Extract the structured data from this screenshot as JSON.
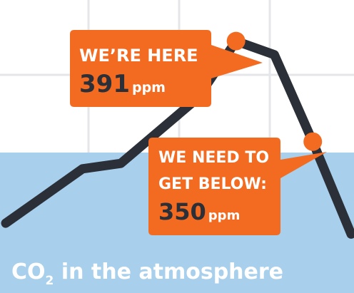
{
  "colors": {
    "background": "#ffffff",
    "band": "#a8d0ec",
    "grid": "#e4e6ea",
    "line": "#2b2f38",
    "accent": "#f26b21",
    "callout_text": "#ffffff",
    "callout_number": "#2b2f38"
  },
  "callouts": {
    "current": {
      "heading": "WE’RE HERE",
      "value": "391",
      "unit": "ppm"
    },
    "target": {
      "heading_line1": "WE NEED TO",
      "heading_line2": "GET BELOW:",
      "value": "350",
      "unit": "ppm"
    }
  },
  "caption": {
    "prefix": "CO",
    "subscript": "2",
    "suffix": " in the atmosphere"
  },
  "chart_data": {
    "type": "line",
    "series": [
      {
        "values": [
          324,
          334,
          344,
          346,
          358,
          370,
          391,
          386,
          354,
          320
        ]
      }
    ],
    "highlight_points": [
      {
        "index": 6,
        "value": 391
      },
      {
        "index": 8,
        "value": 354
      }
    ],
    "reference_band": {
      "from": 0,
      "to": 350
    },
    "grid": true,
    "ylim": [
      318,
      404
    ]
  }
}
